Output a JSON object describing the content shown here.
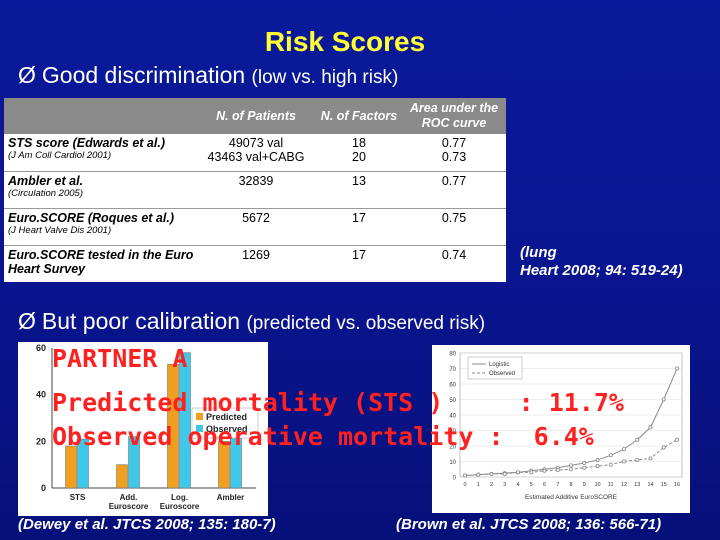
{
  "title": "Risk Scores",
  "bullet1": {
    "arrow": "Ø",
    "main": "Good discrimination",
    "small": "(low vs. high risk)"
  },
  "bullet2": {
    "arrow": "Ø",
    "main": "But poor calibration",
    "small": "(predicted  vs. observed risk)"
  },
  "table": {
    "headers": [
      "",
      "N. of Patients",
      "N. of Factors",
      "Area under the ROC curve"
    ],
    "rows": [
      {
        "name": "STS score (Edwards et al.)",
        "ref": "(J Am Coll Cardiol 2001)",
        "patients": "49073 val\n43463 val+CABG",
        "factors": "18\n20",
        "auc": "0.77\n0.73"
      },
      {
        "name": "Ambler et al.",
        "ref": "(Circulation 2005)",
        "patients": "32839",
        "factors": "13",
        "auc": "0.77"
      },
      {
        "name": "Euro.SCORE (Roques et al.)",
        "ref": "(J Heart Valve Dis 2001)",
        "patients": "5672",
        "factors": "17",
        "auc": "0.75"
      },
      {
        "name": "Euro.SCORE tested in the Euro Heart Survey",
        "ref": "",
        "patients": "1269",
        "factors": "17",
        "auc": "0.74"
      }
    ]
  },
  "table_ref": {
    "line1": "(lung",
    "line2": "Heart 2008; 94: 519-24)"
  },
  "partner": {
    "line1": "PARTNER A",
    "line2": "Predicted mortality (STS )     : 11.7%",
    "line3": "Observed operative mortality :  6.4%"
  },
  "caption_left": "(Dewey et al. JTCS 2008; 135: 180-7)",
  "caption_right": "(Brown et al. JTCS 2008; 136: 566-71)",
  "chart_data": [
    {
      "type": "bar",
      "categories": [
        "STS",
        "Add. Euroscore",
        "Log. Euroscore",
        "Ambler"
      ],
      "series": [
        {
          "name": "Predicted",
          "values": [
            18,
            10,
            53,
            20
          ],
          "color": "#f0a020"
        },
        {
          "name": "Observed",
          "values": [
            21,
            22,
            58,
            22
          ],
          "color": "#40c8e8"
        }
      ],
      "ylim": [
        0,
        60
      ],
      "yticks": [
        0,
        20,
        40,
        60
      ],
      "legend": "right"
    },
    {
      "type": "line",
      "xlabel": "Estimated Additive EuroSCORE",
      "ylim": [
        0,
        80
      ],
      "yticks": [
        0,
        10,
        20,
        30,
        40,
        50,
        60,
        70,
        80
      ],
      "x": [
        0,
        1,
        2,
        3,
        4,
        5,
        6,
        7,
        8,
        9,
        10,
        11,
        12,
        13,
        14,
        15,
        16
      ],
      "xticks": [
        "0",
        "1",
        "2",
        "3",
        "4",
        "5",
        "6",
        "7",
        "8",
        "9",
        "10",
        "11",
        "12",
        "13",
        "14",
        "15",
        "16"
      ],
      "series": [
        {
          "name": "Logistic",
          "values": [
            1,
            1.5,
            2,
            2.5,
            3,
            4,
            5,
            6,
            7.5,
            9,
            11,
            14,
            18,
            24,
            32,
            50,
            70
          ],
          "color": "#8a8a8a"
        },
        {
          "name": "Observed",
          "values": [
            1,
            1.5,
            2,
            2,
            3,
            3,
            4,
            4.5,
            5,
            6,
            7,
            8,
            10,
            11,
            12,
            19,
            24
          ],
          "color": "#8a8a8a"
        }
      ],
      "legend": "top-left"
    }
  ]
}
